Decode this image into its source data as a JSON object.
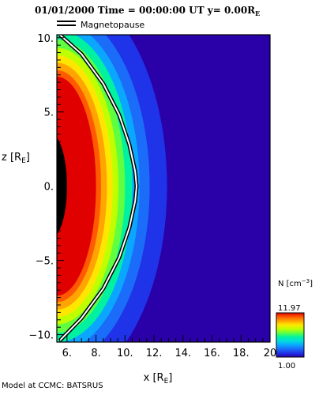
{
  "header": {
    "date": "01/01/2000",
    "time_label": "Time =",
    "time_value": "00:00:00 UT",
    "slice_label": "y=",
    "slice_value": "0.00",
    "slice_unit": "R",
    "slice_unit_sub": "E"
  },
  "legend": {
    "magnetopause_label": "Magnetopause"
  },
  "chart_data": {
    "type": "heatmap",
    "title": "01/01/2000 Time = 00:00:00 UT y= 0.00RE",
    "xlabel": "x [RE]",
    "ylabel": "z [RE]",
    "xlim": [
      5.3,
      20
    ],
    "ylim": [
      -10.5,
      10.2
    ],
    "x_ticks": [
      6,
      8,
      10,
      12,
      14,
      16,
      18,
      20
    ],
    "y_ticks": [
      -10,
      -5,
      0,
      5,
      10
    ],
    "x_tick_labels": [
      "6.",
      "8.",
      "10.",
      "12.",
      "14.",
      "16.",
      "18.",
      "20"
    ],
    "y_tick_labels": [
      "−10.",
      "−5.",
      "0.",
      "5.",
      "10."
    ],
    "variable": "N",
    "units": "cm^-3",
    "colorbar_min": "1.00",
    "colorbar_max": "11.97",
    "colorbar_range": [
      1.0,
      11.97
    ],
    "magnetopause": {
      "standoff_x": 10.8,
      "curve": [
        [
          5.5,
          10.2
        ],
        [
          7.0,
          8.9
        ],
        [
          8.5,
          6.9
        ],
        [
          9.6,
          4.8
        ],
        [
          10.3,
          2.8
        ],
        [
          10.7,
          1.0
        ],
        [
          10.8,
          0
        ],
        [
          10.7,
          -1.0
        ],
        [
          10.3,
          -2.8
        ],
        [
          9.6,
          -4.8
        ],
        [
          8.5,
          -6.9
        ],
        [
          7.0,
          -8.9
        ],
        [
          5.5,
          -10.4
        ]
      ]
    },
    "field_levels": [
      {
        "x_at_z0": 8.0,
        "value": 11.97
      },
      {
        "x_at_z0": 8.35,
        "value": 10.8
      },
      {
        "x_at_z0": 8.75,
        "value": 9.6
      },
      {
        "x_at_z0": 9.15,
        "value": 8.6
      },
      {
        "x_at_z0": 9.55,
        "value": 7.6
      },
      {
        "x_at_z0": 10.0,
        "value": 6.6
      },
      {
        "x_at_z0": 10.5,
        "value": 5.5
      },
      {
        "x_at_z0": 11.0,
        "value": 4.4
      },
      {
        "x_at_z0": 11.7,
        "value": 3.2
      },
      {
        "x_at_z0": 12.9,
        "value": 2.1
      },
      {
        "x_at_z0": 14.2,
        "value": 1.0
      }
    ],
    "inner_boundary": {
      "x_at_z0": 6.0,
      "z_extent": 3.6
    },
    "colors": {
      "ramp": [
        "#2a00a8",
        "#1f33e8",
        "#1b6cf8",
        "#0aa6ff",
        "#00dede",
        "#00f2a0",
        "#60ff40",
        "#c0ff00",
        "#ffe600",
        "#ffa400",
        "#ff5a00",
        "#e00000"
      ],
      "background_level": "#2a00a8",
      "inner_body": "#000000",
      "magnetopause_line": "#ffffff"
    }
  },
  "credit": "Model at CCMC: BATSRUS"
}
